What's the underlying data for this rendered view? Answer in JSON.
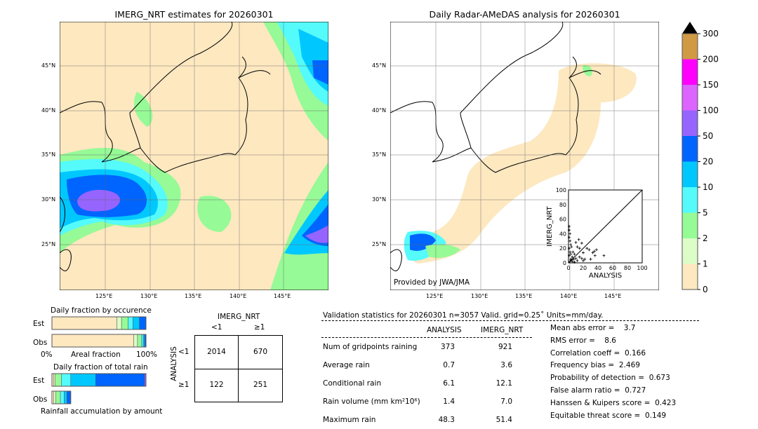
{
  "left_map": {
    "title": "IMERG_NRT estimates for 20260301"
  },
  "right_map": {
    "title": "Daily Radar-AMeDAS analysis for 20260301",
    "credit": "Provided by JWA/JMA"
  },
  "lon_labels": [
    "125°E",
    "130°E",
    "135°E",
    "140°E",
    "145°E"
  ],
  "lat_labels": [
    "45°N",
    "40°N",
    "35°N",
    "30°N",
    "25°N"
  ],
  "colorbar": {
    "ticks": [
      "0",
      "1",
      "2",
      "5",
      "10",
      "20",
      "50",
      "100",
      "150",
      "200",
      "300"
    ],
    "colors": [
      "#fde8c0",
      "#dcfcc8",
      "#96fa96",
      "#55fafa",
      "#00c8ff",
      "#0064ff",
      "#9664ff",
      "#dc64ff",
      "#ff00ff",
      "#d09a44"
    ],
    "extend_color": "#000000"
  },
  "chart_data": [
    {
      "type": "scatter",
      "title": "",
      "xlabel": "ANALYSIS",
      "ylabel": "IMERG_NRT",
      "xlim": [
        0,
        100
      ],
      "ylim": [
        0,
        100
      ],
      "xticks": [
        "0",
        "20",
        "40",
        "60",
        "80",
        "100"
      ],
      "yticks": [
        "0",
        "20",
        "40",
        "60",
        "80",
        "100"
      ],
      "points": [
        [
          1,
          50
        ],
        [
          1,
          45
        ],
        [
          2,
          40
        ],
        [
          1,
          35
        ],
        [
          2,
          30
        ],
        [
          3,
          25
        ],
        [
          1,
          20
        ],
        [
          2,
          15
        ],
        [
          1,
          10
        ],
        [
          3,
          5
        ],
        [
          5,
          2
        ],
        [
          8,
          1
        ],
        [
          10,
          28
        ],
        [
          14,
          32
        ],
        [
          12,
          22
        ],
        [
          15,
          20
        ],
        [
          18,
          27
        ],
        [
          20,
          3
        ],
        [
          22,
          5
        ],
        [
          25,
          20
        ],
        [
          28,
          18
        ],
        [
          30,
          5
        ],
        [
          33,
          14
        ],
        [
          35,
          16
        ],
        [
          36,
          10
        ],
        [
          38,
          18
        ],
        [
          48,
          10
        ],
        [
          5,
          8
        ],
        [
          8,
          12
        ],
        [
          10,
          6
        ],
        [
          15,
          8
        ],
        [
          18,
          6
        ],
        [
          12,
          3
        ],
        [
          6,
          15
        ],
        [
          4,
          22
        ],
        [
          3,
          12
        ],
        [
          2,
          2
        ],
        [
          4,
          4
        ],
        [
          7,
          5
        ],
        [
          20,
          14
        ]
      ]
    },
    {
      "type": "bar",
      "title": "Daily fraction by occurence",
      "xlabel": "Areal fraction",
      "xticks": [
        "0%",
        "100%"
      ],
      "categories": [
        "Est",
        "Obs"
      ],
      "series": [
        {
          "name": "Est",
          "fractions": [
            0.69,
            0.05,
            0.07,
            0.05,
            0.07,
            0.07
          ]
        },
        {
          "name": "Obs",
          "fractions": [
            0.87,
            0.04,
            0.04,
            0.02,
            0.015,
            0.015
          ]
        }
      ]
    },
    {
      "type": "bar",
      "title": "Daily fraction of total rain",
      "xlabel": "Rainfall accumulation by amount",
      "categories": [
        "Est",
        "Obs"
      ],
      "series": [
        {
          "name": "Est",
          "fractions": [
            0.02,
            0.015,
            0.065,
            0.1,
            0.265,
            0.52,
            0.015
          ]
        },
        {
          "name": "Obs",
          "total_scale": 0.2,
          "fractions": [
            0.1,
            0.1,
            0.25,
            0.2,
            0.15,
            0.2
          ]
        }
      ]
    }
  ],
  "contingency": {
    "col_title": "IMERG_NRT",
    "row_title": "ANALYSIS",
    "col_labels": [
      "<1",
      "≥1"
    ],
    "row_labels": [
      "<1",
      "≥1"
    ],
    "cells": [
      [
        "2014",
        "670"
      ],
      [
        "122",
        "251"
      ]
    ]
  },
  "stats": {
    "header": "Validation statistics for 20260301  n=3057 Valid. grid=0.25˚ Units=mm/day.",
    "col_analysis": "ANALYSIS",
    "col_imerg": "IMERG_NRT",
    "rows": [
      {
        "label": "Num of gridpoints raining",
        "a": "373",
        "b": "921"
      },
      {
        "label": "Average rain",
        "a": "0.7",
        "b": "3.6"
      },
      {
        "label": "Conditional rain",
        "a": "6.1",
        "b": "12.1"
      },
      {
        "label": "Rain volume (mm km²10⁶)",
        "a": "1.4",
        "b": "7.0"
      },
      {
        "label": "Maximum rain",
        "a": "48.3",
        "b": "51.4"
      }
    ],
    "scores": [
      "Mean abs error =    3.7",
      "RMS error =    8.6",
      "Correlation coeff =  0.166",
      "Frequency bias =  2.469",
      "Probability of detection =  0.673",
      "False alarm ratio =  0.727",
      "Hanssen & Kuipers score =  0.423",
      "Equitable threat score =  0.149"
    ]
  }
}
